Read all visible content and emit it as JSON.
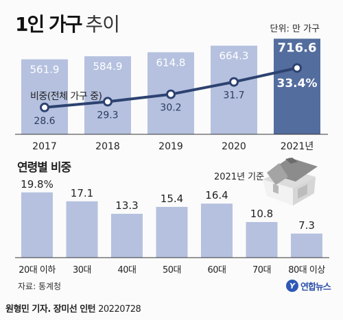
{
  "title": {
    "main": "1인 가구",
    "sub": "추이"
  },
  "unit_label": "단위: 만 가구",
  "chart_data": [
    {
      "type": "bar",
      "categories": [
        "2017",
        "2018",
        "2019",
        "2020",
        "2021년"
      ],
      "values": [
        561.9,
        584.9,
        614.8,
        664.3,
        716.6
      ],
      "value_labels": [
        "561.9",
        "584.9",
        "614.8",
        "664.3",
        "716.6"
      ],
      "ylim": [
        0,
        760
      ],
      "colors": {
        "bar": "#b5c1df",
        "highlight": "#536d9e",
        "label": "#ffffff"
      },
      "overlay_line": {
        "type": "line",
        "label": "비중(전체 가구 중)",
        "values": [
          28.6,
          29.3,
          30.2,
          31.7,
          33.4
        ],
        "value_labels": [
          "28.6",
          "29.3",
          "30.2",
          "31.7",
          "33.4%"
        ],
        "ylim": [
          26,
          35
        ],
        "color": "#2d4270"
      }
    },
    {
      "type": "bar",
      "title": "연령별 비중",
      "categories": [
        "20대 이하",
        "30대",
        "40대",
        "50대",
        "60대",
        "70대",
        "80대 이상"
      ],
      "values": [
        19.8,
        17.1,
        13.3,
        15.4,
        16.4,
        10.8,
        7.3
      ],
      "value_labels": [
        "19.8%",
        "17.1",
        "13.3",
        "15.4",
        "16.4",
        "10.8",
        "7.3"
      ],
      "ylim": [
        0,
        21
      ],
      "colors": {
        "bar": "#b5c1df",
        "label": "#222222"
      }
    }
  ],
  "reference_label": "2021년 기준",
  "icon": "house-icon",
  "source": "자료: 통계청",
  "logo": {
    "mark": "Y",
    "text": "연합뉴스"
  },
  "credit": {
    "text": "원형민 기자. 장미선 인턴",
    "date": "20220728"
  }
}
